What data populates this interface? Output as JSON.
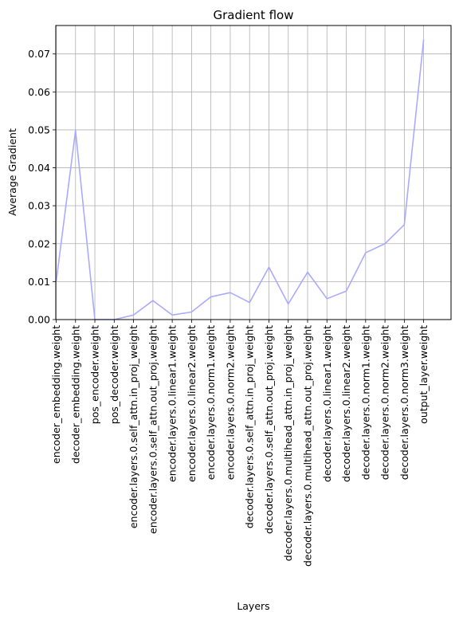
{
  "chart_data": {
    "type": "line",
    "title": "Gradient flow",
    "xlabel": "Layers",
    "ylabel": "Average Gradient",
    "categories": [
      "encoder_embedding.weight",
      "decoder_embedding.weight",
      "pos_encoder.weight",
      "pos_decoder.weight",
      "encoder.layers.0.self_attn.in_proj_weight",
      "encoder.layers.0.self_attn.out_proj.weight",
      "encoder.layers.0.linear1.weight",
      "encoder.layers.0.linear2.weight",
      "encoder.layers.0.norm1.weight",
      "encoder.layers.0.norm2.weight",
      "decoder.layers.0.self_attn.in_proj_weight",
      "decoder.layers.0.self_attn.out_proj.weight",
      "decoder.layers.0.multihead_attn.in_proj_weight",
      "decoder.layers.0.multihead_attn.out_proj.weight",
      "decoder.layers.0.linear1.weight",
      "decoder.layers.0.linear2.weight",
      "decoder.layers.0.norm1.weight",
      "decoder.layers.0.norm2.weight",
      "decoder.layers.0.norm3.weight",
      "output_layer.weight"
    ],
    "values": [
      0.01,
      0.0498,
      0.0,
      0.0,
      0.0012,
      0.005,
      0.0012,
      0.002,
      0.006,
      0.0071,
      0.0045,
      0.0138,
      0.0041,
      0.0125,
      0.0055,
      0.0075,
      0.0176,
      0.02,
      0.025,
      0.0738
    ],
    "ylim": [
      0,
      0.0775
    ],
    "yticks": [
      "0.00",
      "0.01",
      "0.02",
      "0.03",
      "0.04",
      "0.05",
      "0.06",
      "0.07"
    ],
    "grid": true,
    "line_color": "#aaaaff"
  }
}
